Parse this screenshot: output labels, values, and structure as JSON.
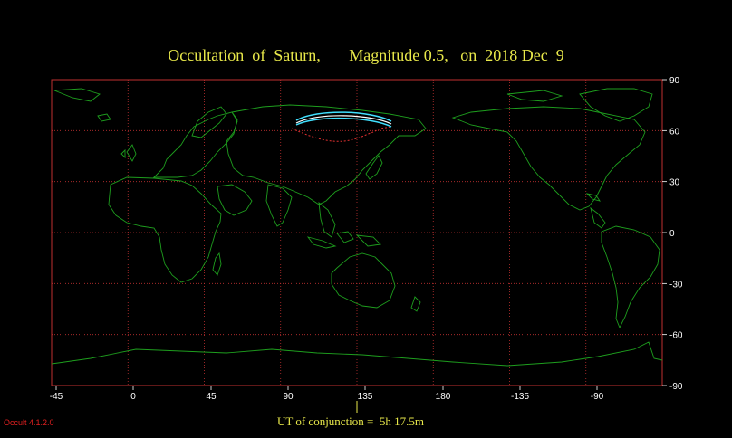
{
  "title": {
    "object_label": "Occultation  of  Saturn,",
    "magnitude_label": "Magnitude 0.5,",
    "date_label": "on  2018 Dec  9"
  },
  "footer": {
    "ut_label": "UT of conjunction =  5h 17.5m",
    "version": "Occult 4.1.2.0"
  },
  "map": {
    "longitude_labels": [
      "-45",
      "0",
      "45",
      "90",
      "135",
      "180",
      "-135",
      "-90"
    ],
    "latitude_labels": [
      "90",
      "60",
      "30",
      "0",
      "-30",
      "-60",
      "-90"
    ],
    "colors": {
      "background": "#000000",
      "grid": "#c03030",
      "coastline": "#1e9e1e",
      "path": "#40e0ff",
      "daylight_limit": "#e03030",
      "title": "#e8e84a"
    }
  }
}
